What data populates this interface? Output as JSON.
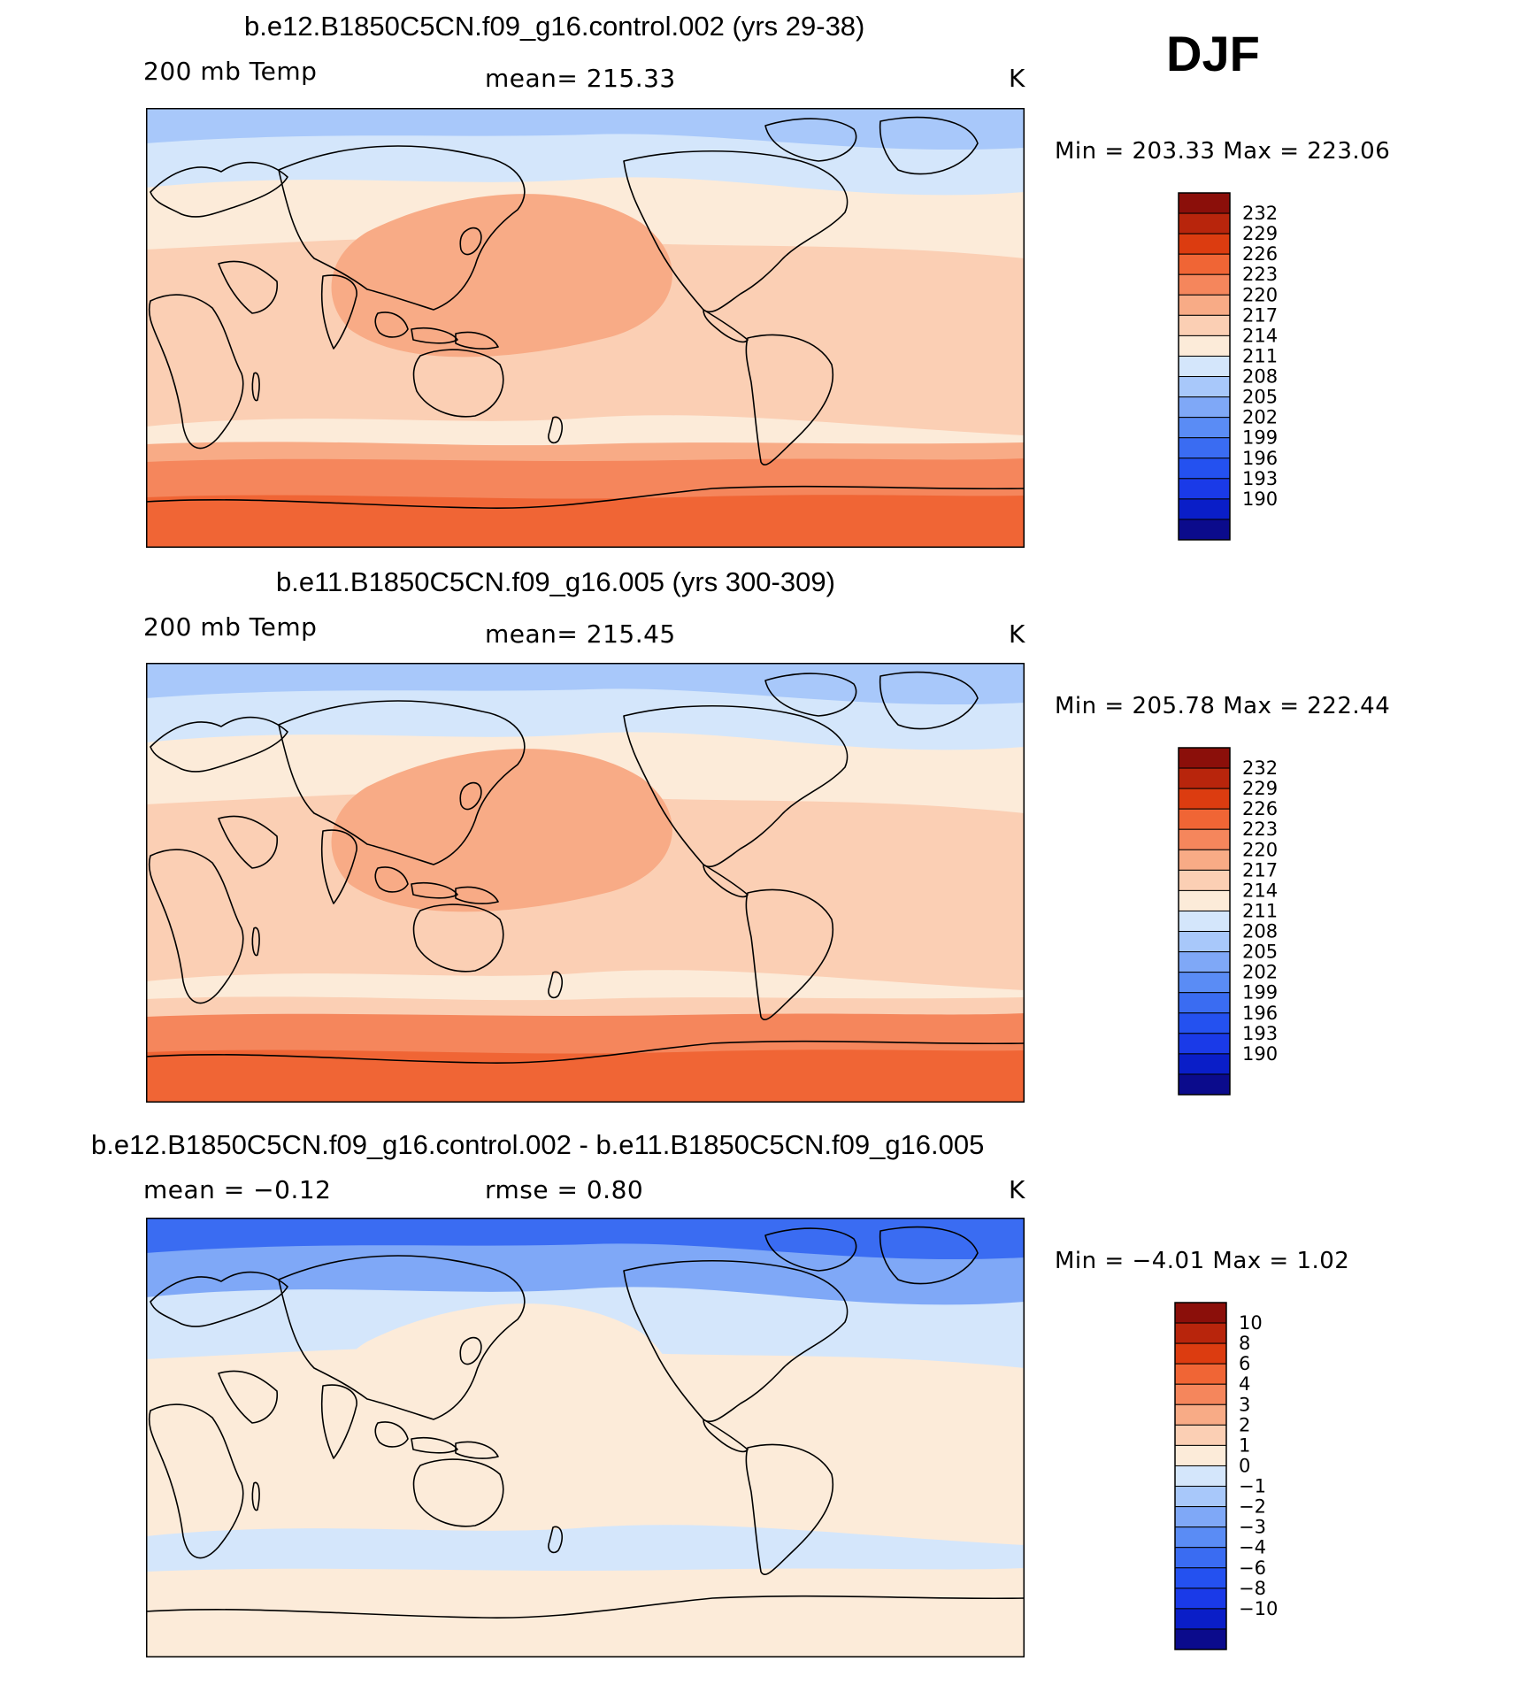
{
  "season": "DJF",
  "colors": {
    "scale": [
      "#0b0b8c",
      "#0a1ec8",
      "#1a3ae8",
      "#2451f0",
      "#3a6cf2",
      "#5a8cf5",
      "#7fa8f7",
      "#a8c8fa",
      "#d4e6fb",
      "#fcebd9",
      "#fbcfb4",
      "#f8ab86",
      "#f5865c",
      "#f06535",
      "#dc3c10",
      "#b8250c",
      "#8b0f0a"
    ],
    "coast": "#000000"
  },
  "panels": [
    {
      "title": "b.e12.B1850C5CN.f09_g16.control.002 (yrs 29-38)",
      "left_label": "200 mb Temp",
      "center_label": "mean=  215.33",
      "units": "K",
      "minmax": "Min  =  203.33  Max  =  223.06",
      "colorbar_ticks": [
        "232",
        "229",
        "226",
        "223",
        "220",
        "217",
        "214",
        "211",
        "208",
        "205",
        "202",
        "199",
        "196",
        "193",
        "190"
      ],
      "fill_levels": {
        "arctic": 7,
        "high_nh": 8,
        "mid": 9,
        "tropics": 10,
        "core": 11,
        "south_mid": 11,
        "south_high": 12,
        "antarctic": 13
      }
    },
    {
      "title": "b.e11.B1850C5CN.f09_g16.005 (yrs 300-309)",
      "left_label": "200 mb Temp",
      "center_label": "mean=  215.45",
      "units": "K",
      "minmax": "Min  =  205.78  Max  =  222.44",
      "colorbar_ticks": [
        "232",
        "229",
        "226",
        "223",
        "220",
        "217",
        "214",
        "211",
        "208",
        "205",
        "202",
        "199",
        "196",
        "193",
        "190"
      ],
      "fill_levels": {
        "arctic": 7,
        "high_nh": 8,
        "mid": 9,
        "tropics": 10,
        "core": 11,
        "south_mid": 10,
        "south_high": 12,
        "antarctic": 13
      }
    },
    {
      "title": "b.e12.B1850C5CN.f09_g16.control.002 - b.e11.B1850C5CN.f09_g16.005",
      "left_label": "mean =   −0.12",
      "center_label": "rmse =    0.80",
      "units": "K",
      "minmax": "Min  =   −4.01  Max  =    1.02",
      "colorbar_ticks": [
        "10",
        "8",
        "6",
        "4",
        "3",
        "2",
        "1",
        "0",
        "−1",
        "−2",
        "−3",
        "−4",
        "−6",
        "−8",
        "−10"
      ],
      "fill_levels": {
        "arctic": 4,
        "high_nh": 6,
        "mid": 8,
        "tropics": 9,
        "core": 9,
        "south_mid": 8,
        "south_high": 9,
        "antarctic": 9
      }
    }
  ]
}
